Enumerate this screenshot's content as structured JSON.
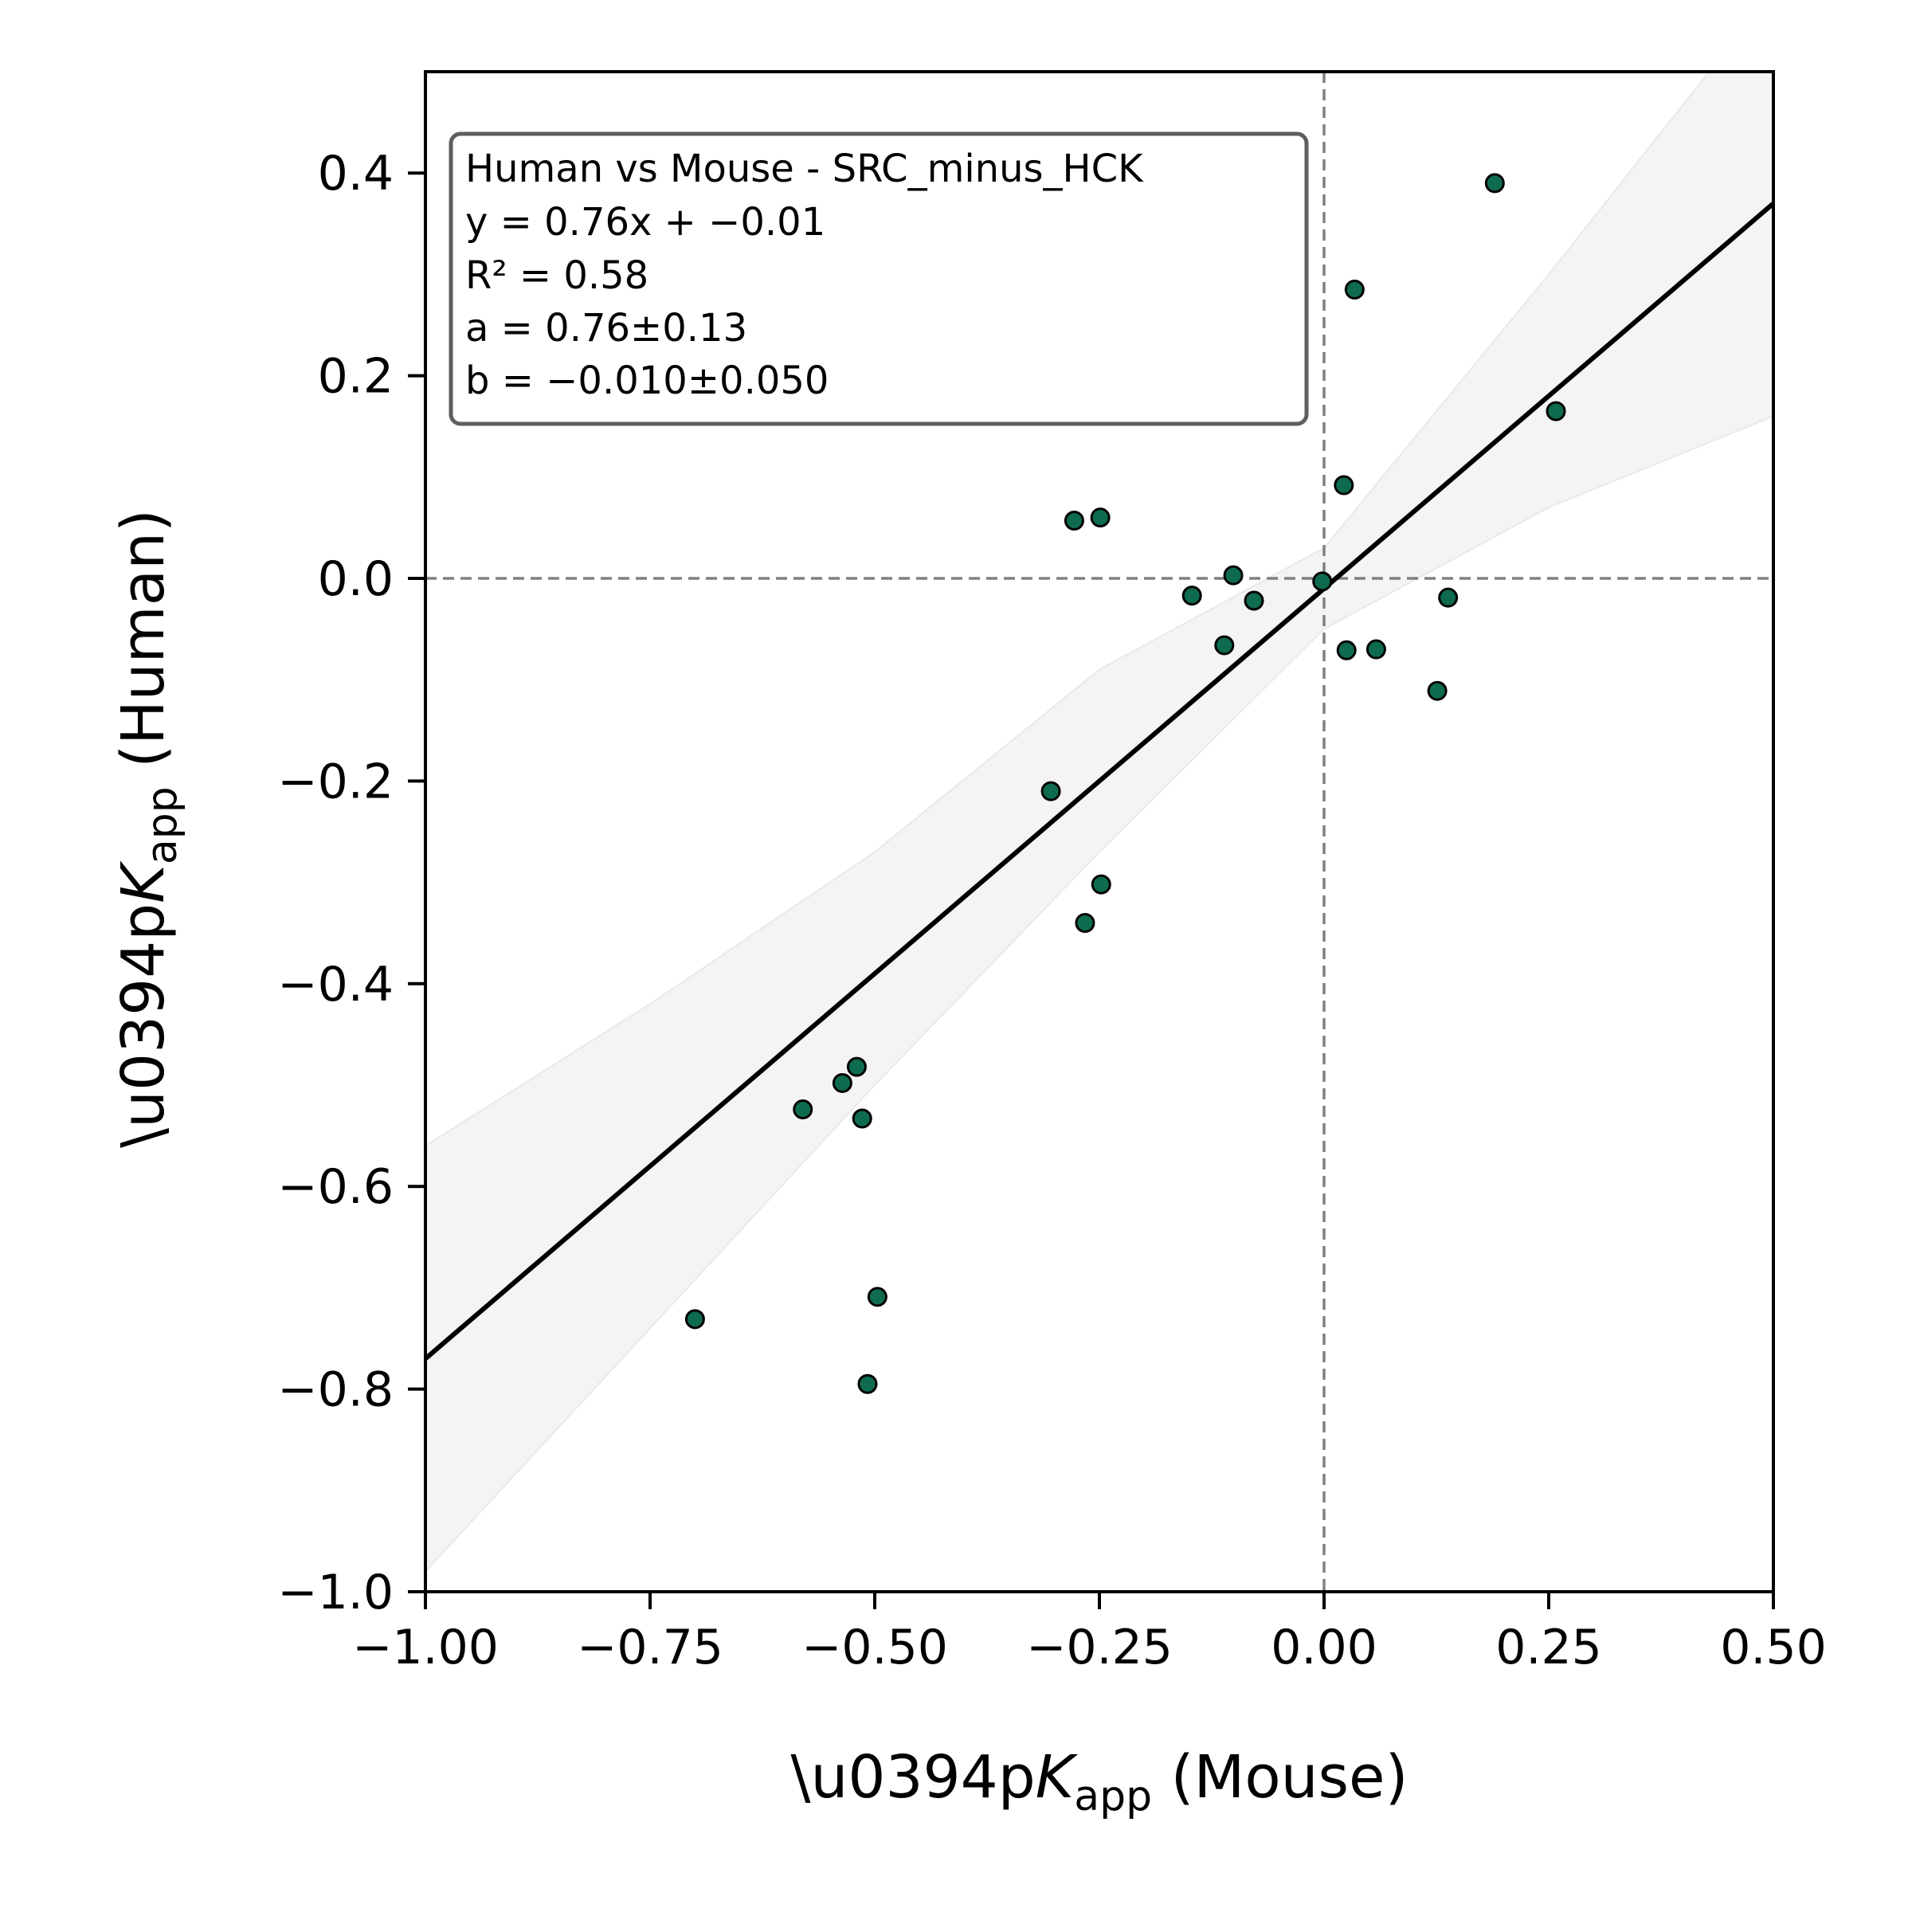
{
  "chart_data": {
    "type": "scatter",
    "xlabel": {
      "prefix": "\\u0394p",
      "symbol": "K",
      "subscript": "app",
      "suffix": " (Mouse)"
    },
    "ylabel": {
      "prefix": "\\u0394p",
      "symbol": "K",
      "subscript": "app",
      "suffix": " (Human)"
    },
    "xlim": [
      -1.0,
      0.5
    ],
    "ylim": [
      -1.0,
      0.5
    ],
    "x_ticks": [
      -1.0,
      -0.75,
      -0.5,
      -0.25,
      0.0,
      0.25,
      0.5
    ],
    "x_tick_labels": [
      "−1.00",
      "−0.75",
      "−0.50",
      "−0.25",
      "0.00",
      "0.25",
      "0.50"
    ],
    "y_ticks": [
      -1.0,
      -0.8,
      -0.6,
      -0.4,
      -0.2,
      0.0,
      0.2,
      0.4
    ],
    "y_tick_labels": [
      "−1.0",
      "−0.8",
      "−0.6",
      "−0.4",
      "−0.2",
      "0.0",
      "0.2",
      "0.4"
    ],
    "grid": false,
    "reference_lines": {
      "x": 0.0,
      "y": 0.0,
      "style": "dashed",
      "color": "#808080"
    },
    "point_color": "#0e6b50",
    "point_edge_color": "#000000",
    "fit": {
      "slope": 0.76,
      "intercept": -0.01,
      "color": "#000000"
    },
    "confidence_band": {
      "x": [
        -1.0,
        -0.75,
        -0.5,
        -0.25,
        0.0,
        0.25,
        0.5
      ],
      "lower": [
        -0.98,
        -0.74,
        -0.5,
        -0.27,
        -0.05,
        0.07,
        0.16
      ],
      "upper": [
        -0.56,
        -0.42,
        -0.27,
        -0.09,
        0.03,
        0.3,
        0.58
      ],
      "color": "#f4f4f4"
    },
    "points": [
      {
        "x": 0.19,
        "y": 0.39
      },
      {
        "x": 0.034,
        "y": 0.285
      },
      {
        "x": 0.258,
        "y": 0.165
      },
      {
        "x": 0.022,
        "y": 0.092
      },
      {
        "x": -0.278,
        "y": 0.057
      },
      {
        "x": -0.249,
        "y": 0.06
      },
      {
        "x": -0.101,
        "y": 0.003
      },
      {
        "x": -0.002,
        "y": -0.003
      },
      {
        "x": -0.147,
        "y": -0.017
      },
      {
        "x": -0.078,
        "y": -0.022
      },
      {
        "x": 0.138,
        "y": -0.019
      },
      {
        "x": -0.111,
        "y": -0.066
      },
      {
        "x": 0.025,
        "y": -0.071
      },
      {
        "x": 0.058,
        "y": -0.07
      },
      {
        "x": 0.126,
        "y": -0.111
      },
      {
        "x": -0.304,
        "y": -0.21
      },
      {
        "x": -0.248,
        "y": -0.302
      },
      {
        "x": -0.266,
        "y": -0.34
      },
      {
        "x": -0.52,
        "y": -0.482
      },
      {
        "x": -0.536,
        "y": -0.498
      },
      {
        "x": -0.58,
        "y": -0.524
      },
      {
        "x": -0.514,
        "y": -0.533
      },
      {
        "x": -0.497,
        "y": -0.709
      },
      {
        "x": -0.7,
        "y": -0.731
      },
      {
        "x": -0.508,
        "y": -0.795
      }
    ],
    "annotation": {
      "title": "Human vs Mouse - SRC_minus_HCK",
      "equation": "y = 0.76x + −0.01",
      "r2": "R² = 0.58",
      "a": "a = 0.76±0.13",
      "b": "b = −0.010±0.050",
      "placement": "top-left"
    }
  }
}
